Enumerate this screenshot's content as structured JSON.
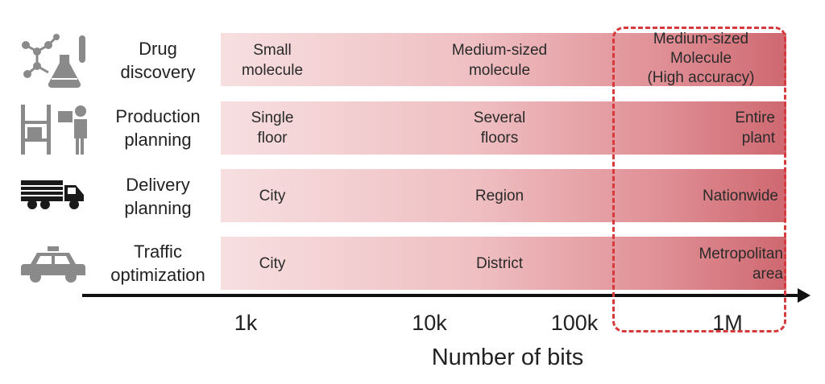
{
  "rows": [
    {
      "label": "Drug\ndiscovery",
      "icon": "molecule-flask-icon",
      "cells": [
        "Small\nmolecule",
        "Medium-sized\nmolecule",
        "Medium-sized\nMolecule\n(High accuracy)"
      ]
    },
    {
      "label": "Production\nplanning",
      "icon": "factory-worker-icon",
      "cells": [
        "Single\nfloor",
        "Several\nfloors",
        "Entire\nplant"
      ]
    },
    {
      "label": "Delivery\nplanning",
      "icon": "truck-icon",
      "cells": [
        "City",
        "Region",
        "Nationwide"
      ]
    },
    {
      "label": "Traffic\noptimization",
      "icon": "taxi-icon",
      "cells": [
        "City",
        "District",
        "Metropolitan\narea"
      ]
    }
  ],
  "axis": {
    "ticks": [
      "1k",
      "10k",
      "100k",
      "1M"
    ],
    "title": "Number of bits"
  },
  "colors": {
    "band_light": "#f7dfe0",
    "band_dark": "#cf6870",
    "highlight": "#d63a3a",
    "icon_gray": "#8a8a8a"
  }
}
